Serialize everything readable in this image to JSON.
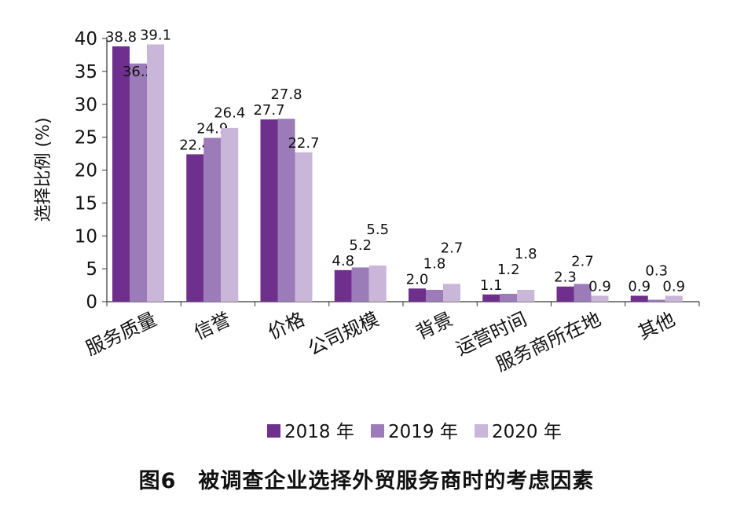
{
  "chart_data": {
    "type": "bar",
    "title": "图6　被调查企业选择外贸服务商时的考虑因素",
    "ylabel": "选择比例 (%)",
    "xlabel": "",
    "ylim": [
      0,
      40
    ],
    "yticks": [
      0,
      5,
      10,
      15,
      20,
      25,
      30,
      35,
      40
    ],
    "grid": false,
    "legend_position": "bottom",
    "categories": [
      "服务质量",
      "信誉",
      "价格",
      "公司规模",
      "背景",
      "运营时间",
      "服务商所在地",
      "其他"
    ],
    "series": [
      {
        "name": "2018 年",
        "color": "#6f2f8c",
        "values": [
          38.8,
          22.4,
          27.7,
          4.8,
          2.0,
          1.1,
          2.3,
          0.9
        ],
        "labels": [
          "38.8",
          "22.4",
          "27.7",
          "4.8",
          "2.0",
          "1.1",
          "2.3",
          "0.9"
        ]
      },
      {
        "name": "2019 年",
        "color": "#9b7bb8",
        "values": [
          36.2,
          24.9,
          27.8,
          5.2,
          1.8,
          1.2,
          2.7,
          0.3
        ],
        "labels": [
          "36.2",
          "24.9",
          "27.8",
          "5.2",
          "1.8",
          "1.2",
          "2.7",
          "0.3"
        ]
      },
      {
        "name": "2020 年",
        "color": "#c9b6d8",
        "values": [
          39.1,
          26.4,
          22.7,
          5.5,
          2.7,
          1.8,
          0.9,
          0.9
        ],
        "labels": [
          "39.1",
          "26.4",
          "22.7",
          "5.5",
          "2.7",
          "1.8",
          "0.9",
          "0.9"
        ]
      }
    ]
  }
}
